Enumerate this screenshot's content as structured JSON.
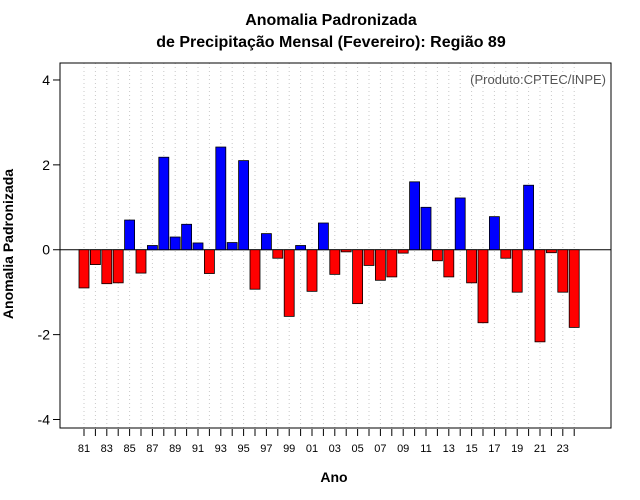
{
  "chart_data": {
    "type": "bar",
    "title": "Anomalia Padronizada",
    "subtitle": "de Precipitação Mensal (Fevereiro): Região 89",
    "xlabel": "Ano",
    "ylabel": "Anomalia Padronizada",
    "annotation": "(Produto:CPTEC/INPE)",
    "ylim": [
      -4.2,
      4.4
    ],
    "yticks": [
      -4,
      -2,
      0,
      2,
      4
    ],
    "grid": "vertical dotted",
    "categories": [
      "1981",
      "1982",
      "1983",
      "1984",
      "1985",
      "1986",
      "1987",
      "1988",
      "1989",
      "1990",
      "1991",
      "1992",
      "1993",
      "1994",
      "1995",
      "1996",
      "1997",
      "1998",
      "1999",
      "2000",
      "2001",
      "2002",
      "2003",
      "2004",
      "2005",
      "2006",
      "2007",
      "2008",
      "2009",
      "2010",
      "2011",
      "2012",
      "2013",
      "2014",
      "2015",
      "2016",
      "2017",
      "2018",
      "2019",
      "2020",
      "2021",
      "2022",
      "2023",
      "2024"
    ],
    "tick_labels": [
      "81",
      "83",
      "85",
      "87",
      "89",
      "91",
      "93",
      "95",
      "97",
      "99",
      "01",
      "03",
      "05",
      "07",
      "09",
      "11",
      "13",
      "15",
      "17",
      "19",
      "21",
      "23"
    ],
    "values": [
      -0.9,
      -0.35,
      -0.8,
      -0.78,
      0.7,
      -0.55,
      0.1,
      2.18,
      0.3,
      0.6,
      0.16,
      -0.56,
      2.42,
      0.17,
      2.1,
      -0.93,
      0.38,
      -0.2,
      -1.57,
      0.1,
      -0.98,
      0.63,
      -0.58,
      -0.05,
      -1.27,
      -0.37,
      -0.72,
      -0.64,
      -0.08,
      1.6,
      1.0,
      -0.26,
      -0.64,
      1.22,
      -0.78,
      -1.72,
      0.78,
      -0.2,
      -1.0,
      1.52,
      -2.17,
      -0.07,
      -1.0,
      -1.83
    ],
    "colors": {
      "positive": "#0000ff",
      "negative": "#ff0000"
    }
  }
}
